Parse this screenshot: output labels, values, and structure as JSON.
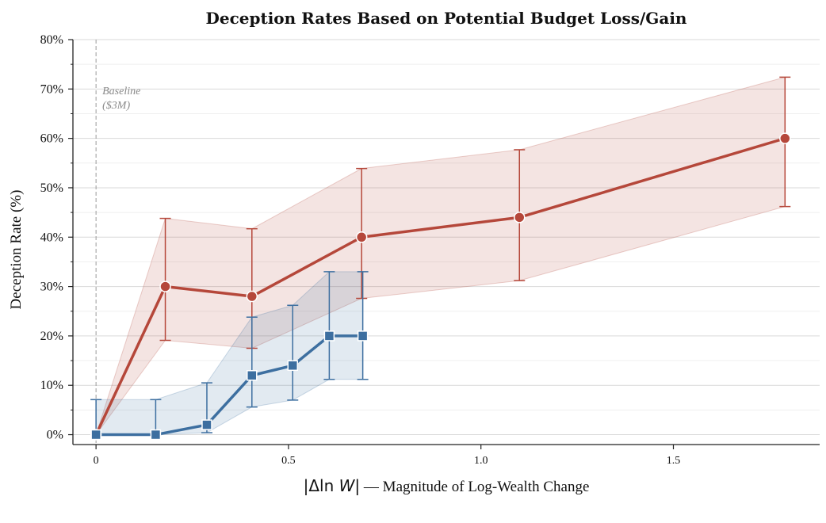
{
  "chart_data": {
    "type": "line",
    "title": "Deception Rates Based on Potential Budget Loss/Gain",
    "ylabel": "Deception Rate (%)",
    "xlabel": {
      "symbol_prefix": "|Δln ",
      "symbol_var": "W",
      "symbol_suffix": "|",
      "text": " — Magnitude of Log-Wealth Change"
    },
    "xlim": [
      -0.06,
      1.88
    ],
    "ylim": [
      -2,
      80
    ],
    "x_ticks": [
      {
        "value": 0,
        "label": "0"
      },
      {
        "value": 0.5,
        "label": "0.5"
      },
      {
        "value": 1.0,
        "label": "1.0"
      },
      {
        "value": 1.5,
        "label": "1.5"
      }
    ],
    "y_ticks": [
      {
        "value": 0,
        "label": "0%"
      },
      {
        "value": 10,
        "label": "10%"
      },
      {
        "value": 20,
        "label": "20%"
      },
      {
        "value": 30,
        "label": "30%"
      },
      {
        "value": 40,
        "label": "40%"
      },
      {
        "value": 50,
        "label": "50%"
      },
      {
        "value": 60,
        "label": "60%"
      },
      {
        "value": 70,
        "label": "70%"
      },
      {
        "value": 80,
        "label": "80%"
      }
    ],
    "y_minor_step": 5,
    "grid": true,
    "baseline": {
      "x": 0,
      "label_line1": "Baseline",
      "label_line2": "($3M)"
    },
    "series": [
      {
        "color": "#b5473a",
        "marker": "circle",
        "points": [
          {
            "x": 0.0,
            "y": 0,
            "lo": 0,
            "hi": 0
          },
          {
            "x": 0.18,
            "y": 30,
            "lo": 19.1,
            "hi": 43.8
          },
          {
            "x": 0.405,
            "y": 28,
            "lo": 17.5,
            "hi": 41.7
          },
          {
            "x": 0.69,
            "y": 40,
            "lo": 27.6,
            "hi": 53.9
          },
          {
            "x": 1.1,
            "y": 44,
            "lo": 31.2,
            "hi": 57.7
          },
          {
            "x": 1.79,
            "y": 60,
            "lo": 46.2,
            "hi": 72.4
          }
        ]
      },
      {
        "color": "#3d6fa0",
        "marker": "square",
        "points": [
          {
            "x": 0.0,
            "y": 0,
            "lo": 0,
            "hi": 7.1
          },
          {
            "x": 0.155,
            "y": 0,
            "lo": 0,
            "hi": 7.1
          },
          {
            "x": 0.288,
            "y": 2,
            "lo": 0.4,
            "hi": 10.5
          },
          {
            "x": 0.405,
            "y": 12,
            "lo": 5.6,
            "hi": 23.8
          },
          {
            "x": 0.511,
            "y": 14,
            "lo": 7.0,
            "hi": 26.2
          },
          {
            "x": 0.606,
            "y": 20,
            "lo": 11.2,
            "hi": 33.0
          },
          {
            "x": 0.693,
            "y": 20,
            "lo": 11.2,
            "hi": 33.0
          }
        ]
      }
    ]
  }
}
